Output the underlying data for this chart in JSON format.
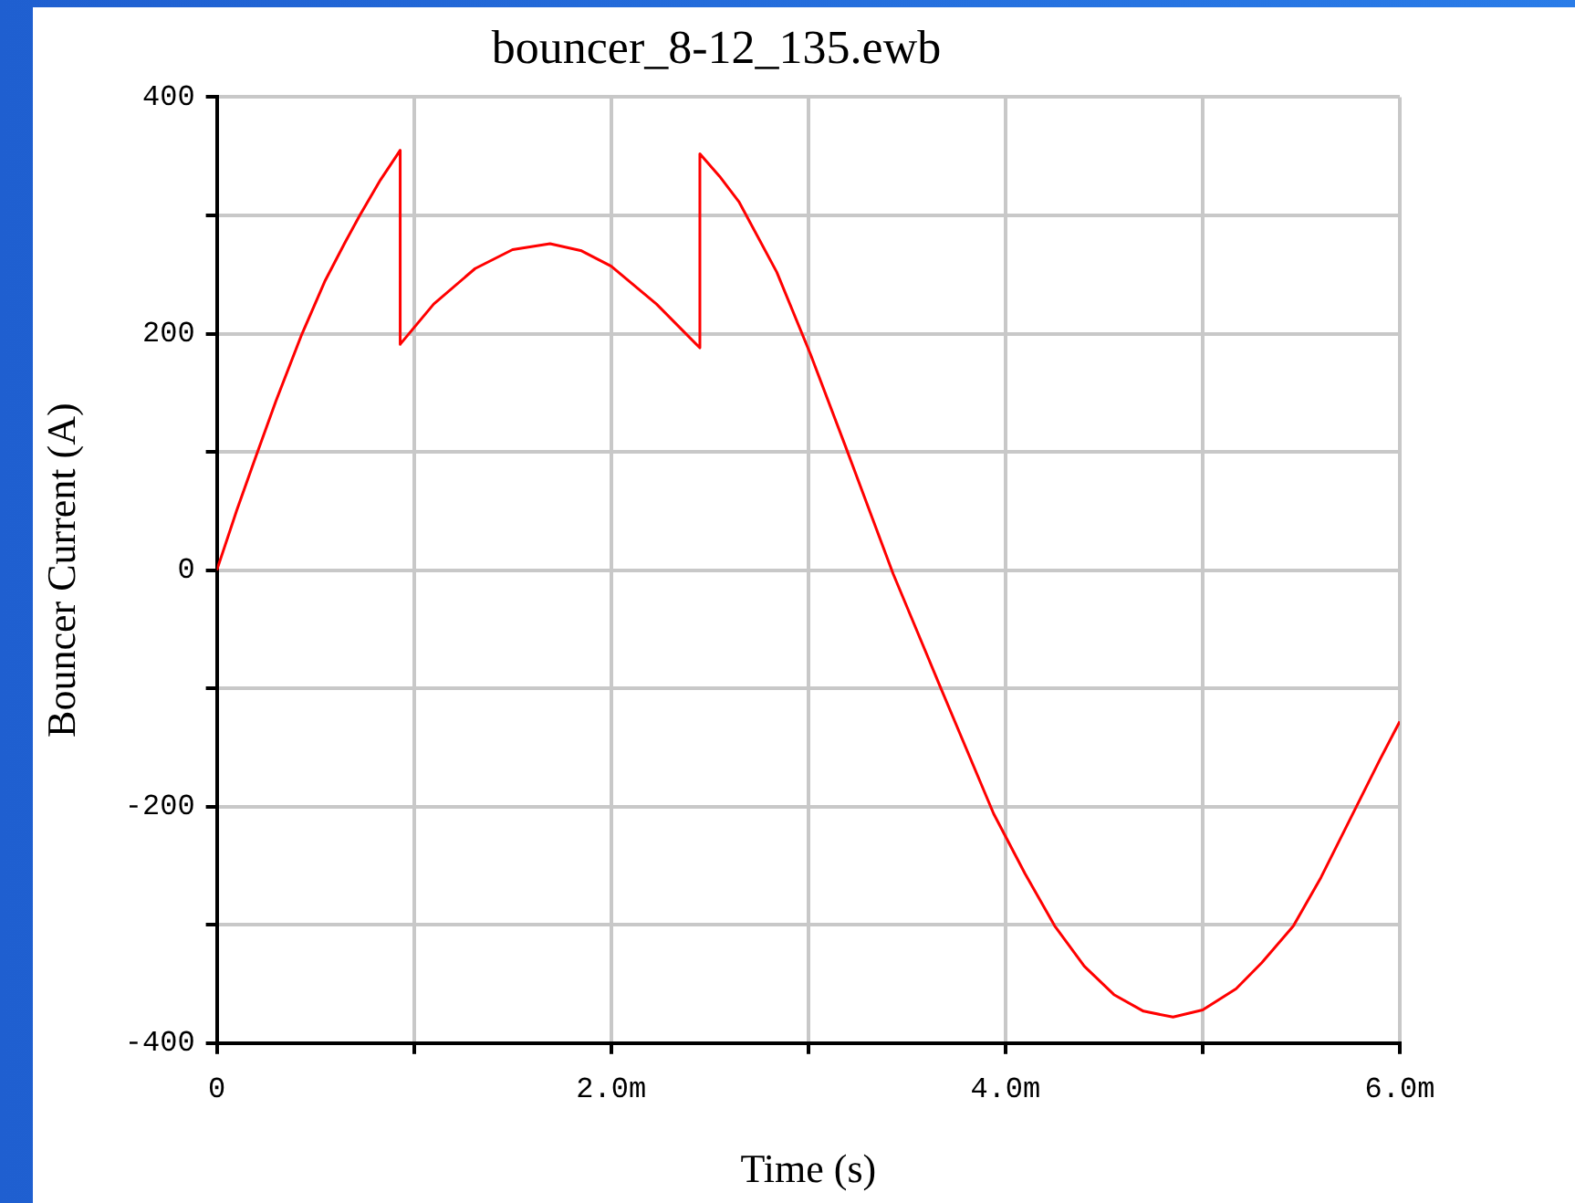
{
  "chart_data": {
    "type": "line",
    "title": "bouncer_8-12_135.ewb",
    "xlabel": "Time (s)",
    "ylabel": "Bouncer Current (A)",
    "x": [
      0,
      0.1,
      0.2,
      0.3,
      0.43,
      0.55,
      0.65,
      0.725,
      0.83,
      0.93,
      0.93,
      1.1,
      1.31,
      1.5,
      1.69,
      1.85,
      2.0,
      2.23,
      2.45,
      2.45,
      2.55,
      2.65,
      2.84,
      3.01,
      3.19,
      3.43,
      3.67,
      3.94,
      4.1,
      4.25,
      4.4,
      4.55,
      4.7,
      4.85,
      5.0,
      5.17,
      5.3,
      5.46,
      5.6,
      5.75,
      5.9,
      6.0
    ],
    "series": [
      {
        "color": "#ff0000",
        "values": [
          0,
          50,
          97,
          143,
          199,
          245,
          277,
          300,
          330,
          355,
          191,
          225,
          255,
          271,
          276,
          270,
          257,
          225,
          188,
          352,
          333,
          311,
          252,
          183,
          104,
          -3,
          -99,
          -206,
          -257,
          -301,
          -335,
          -359,
          -373,
          -378,
          -372,
          -354,
          -332,
          -301,
          -260,
          -210,
          -160,
          -128
        ]
      }
    ],
    "xlim": [
      0,
      6
    ],
    "xticks": [
      0,
      {
        "value": 1,
        "label": null
      },
      {
        "value": 2,
        "label": "2.0m"
      },
      {
        "value": 3,
        "label": null
      },
      {
        "value": 4,
        "label": "4.0m"
      },
      {
        "value": 5,
        "label": null
      },
      {
        "value": 6,
        "label": "6.0m"
      }
    ],
    "ylim": [
      -400,
      400
    ],
    "yticks": [
      -400,
      {
        "value": -300,
        "label": null
      },
      -200,
      {
        "value": -100,
        "label": null
      },
      0,
      {
        "value": 100,
        "label": null
      },
      200,
      {
        "value": 300,
        "label": null
      },
      400
    ],
    "grid": true,
    "marker": "none",
    "line_style": "solid"
  }
}
